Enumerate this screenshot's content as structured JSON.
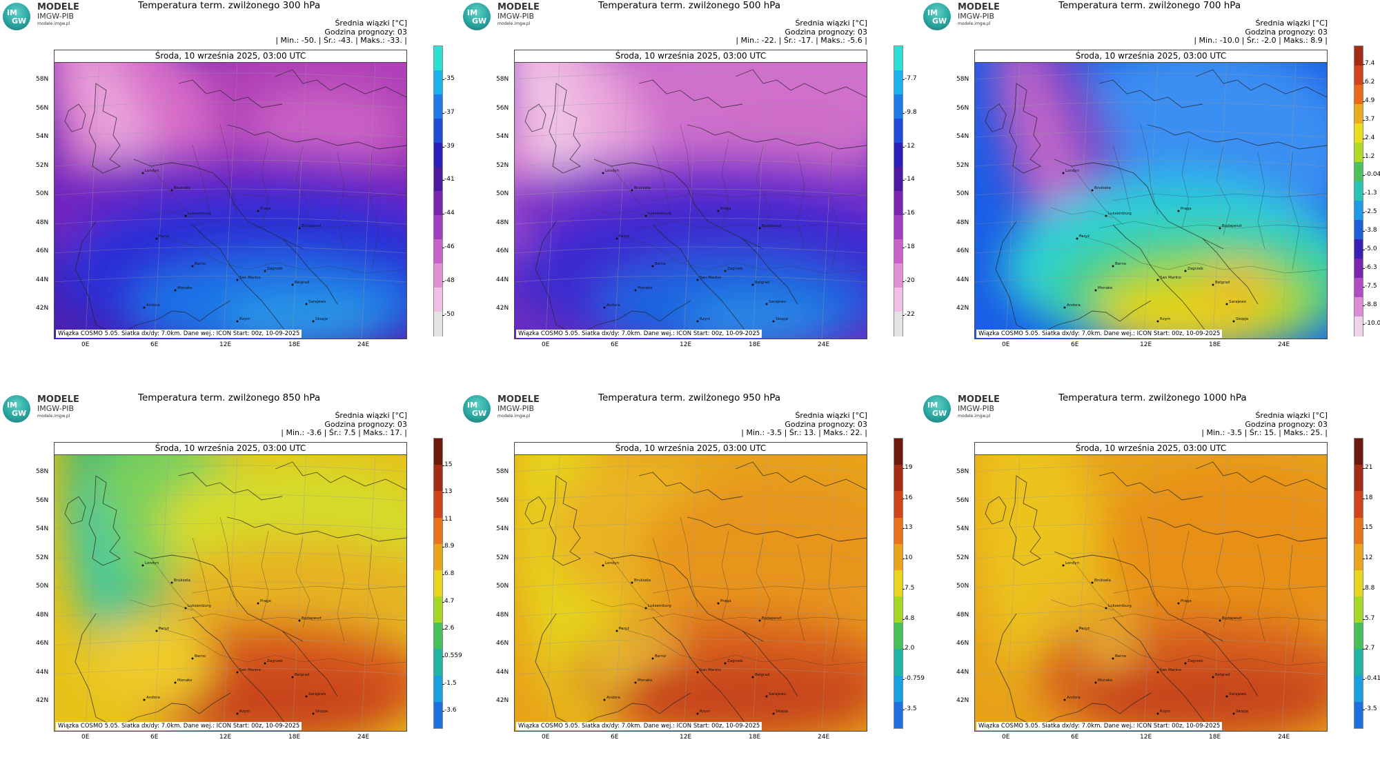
{
  "logo": {
    "badge_top": "IM",
    "badge_bottom": "GW",
    "name": "MODELE",
    "org": "IMGW-PIB",
    "url": "modele.imgw.pl"
  },
  "common": {
    "stats_title": "Średnia wiązki [°C]",
    "forecast_hour": "Godzina prognozy: 03",
    "date": "Środa, 10 września 2025, 03:00 UTC",
    "footer": "Wiązka COSMO 5.05. Siatka dx/dy: 7.0km. Dane wej.: ICON Start: 00z, 10-09-2025",
    "lat_labels": [
      "58N",
      "56N",
      "54N",
      "52N",
      "50N",
      "48N",
      "46N",
      "44N",
      "42N"
    ],
    "lon_labels": [
      "0E",
      "6E",
      "12E",
      "18E",
      "24E"
    ],
    "cities": [
      "Londyn",
      "Bruksela",
      "Luksemburg",
      "Paryż",
      "Praga",
      "Budapeszt",
      "Berno",
      "Zagrzeb",
      "Belgrad",
      "San Marino",
      "Sarajewo",
      "Andora",
      "Rzym",
      "Skopje",
      "Monako"
    ]
  },
  "panels": [
    {
      "title": "Temperatura term. zwilżonego 300 hPa",
      "stats": "| Min.:   -50. | Śr.:   -43. | Maks.:   -33. |",
      "colorbar_labels": [
        "-35",
        "-37",
        "-39",
        "-41",
        "-44",
        "-46",
        "-48",
        "-50"
      ],
      "scheme": "cold"
    },
    {
      "title": "Temperatura term. zwilżonego 500 hPa",
      "stats": "| Min.:   -22. | Śr.:   -17. | Maks.:   -5.6 |",
      "colorbar_labels": [
        "-7.7",
        "-9.8",
        "-12",
        "-14",
        "-16",
        "-18",
        "-20",
        "-22"
      ],
      "scheme": "cold"
    },
    {
      "title": "Temperatura term. zwilżonego 700 hPa",
      "stats": "| Min.:   -10.0 | Śr.:   -2.0 | Maks.:   8.9 |",
      "colorbar_labels": [
        "7.4",
        "6.2",
        "4.9",
        "3.7",
        "2.4",
        "1.2",
        "-0.048",
        "-1.3",
        "-2.5",
        "-3.8",
        "-5.0",
        "-6.3",
        "-7.5",
        "-8.8",
        "-10.0"
      ],
      "scheme": "full"
    },
    {
      "title": "Temperatura term. zwilżonego 850 hPa",
      "stats": "| Min.:   -3.6 | Śr.:   7.5 | Maks.:   17. |",
      "colorbar_labels": [
        "15",
        "13",
        "11",
        "8.9",
        "6.8",
        "4.7",
        "2.6",
        "0.559",
        "-1.5",
        "-3.6"
      ],
      "scheme": "warm"
    },
    {
      "title": "Temperatura term. zwilżonego 950 hPa",
      "stats": "| Min.:   -3.5 | Śr.:   13. | Maks.:   22. |",
      "colorbar_labels": [
        "19",
        "16",
        "13",
        "10",
        "7.5",
        "4.8",
        "2.0",
        "-0.759",
        "-3.5"
      ],
      "scheme": "warm"
    },
    {
      "title": "Temperatura term. zwilżonego 1000 hPa",
      "stats": "| Min.:   -3.5 | Śr.:   15. | Maks.:   25. |",
      "colorbar_labels": [
        "21",
        "18",
        "15",
        "12",
        "8.8",
        "5.7",
        "2.7",
        "-0.412",
        "-3.5"
      ],
      "scheme": "warm"
    }
  ]
}
